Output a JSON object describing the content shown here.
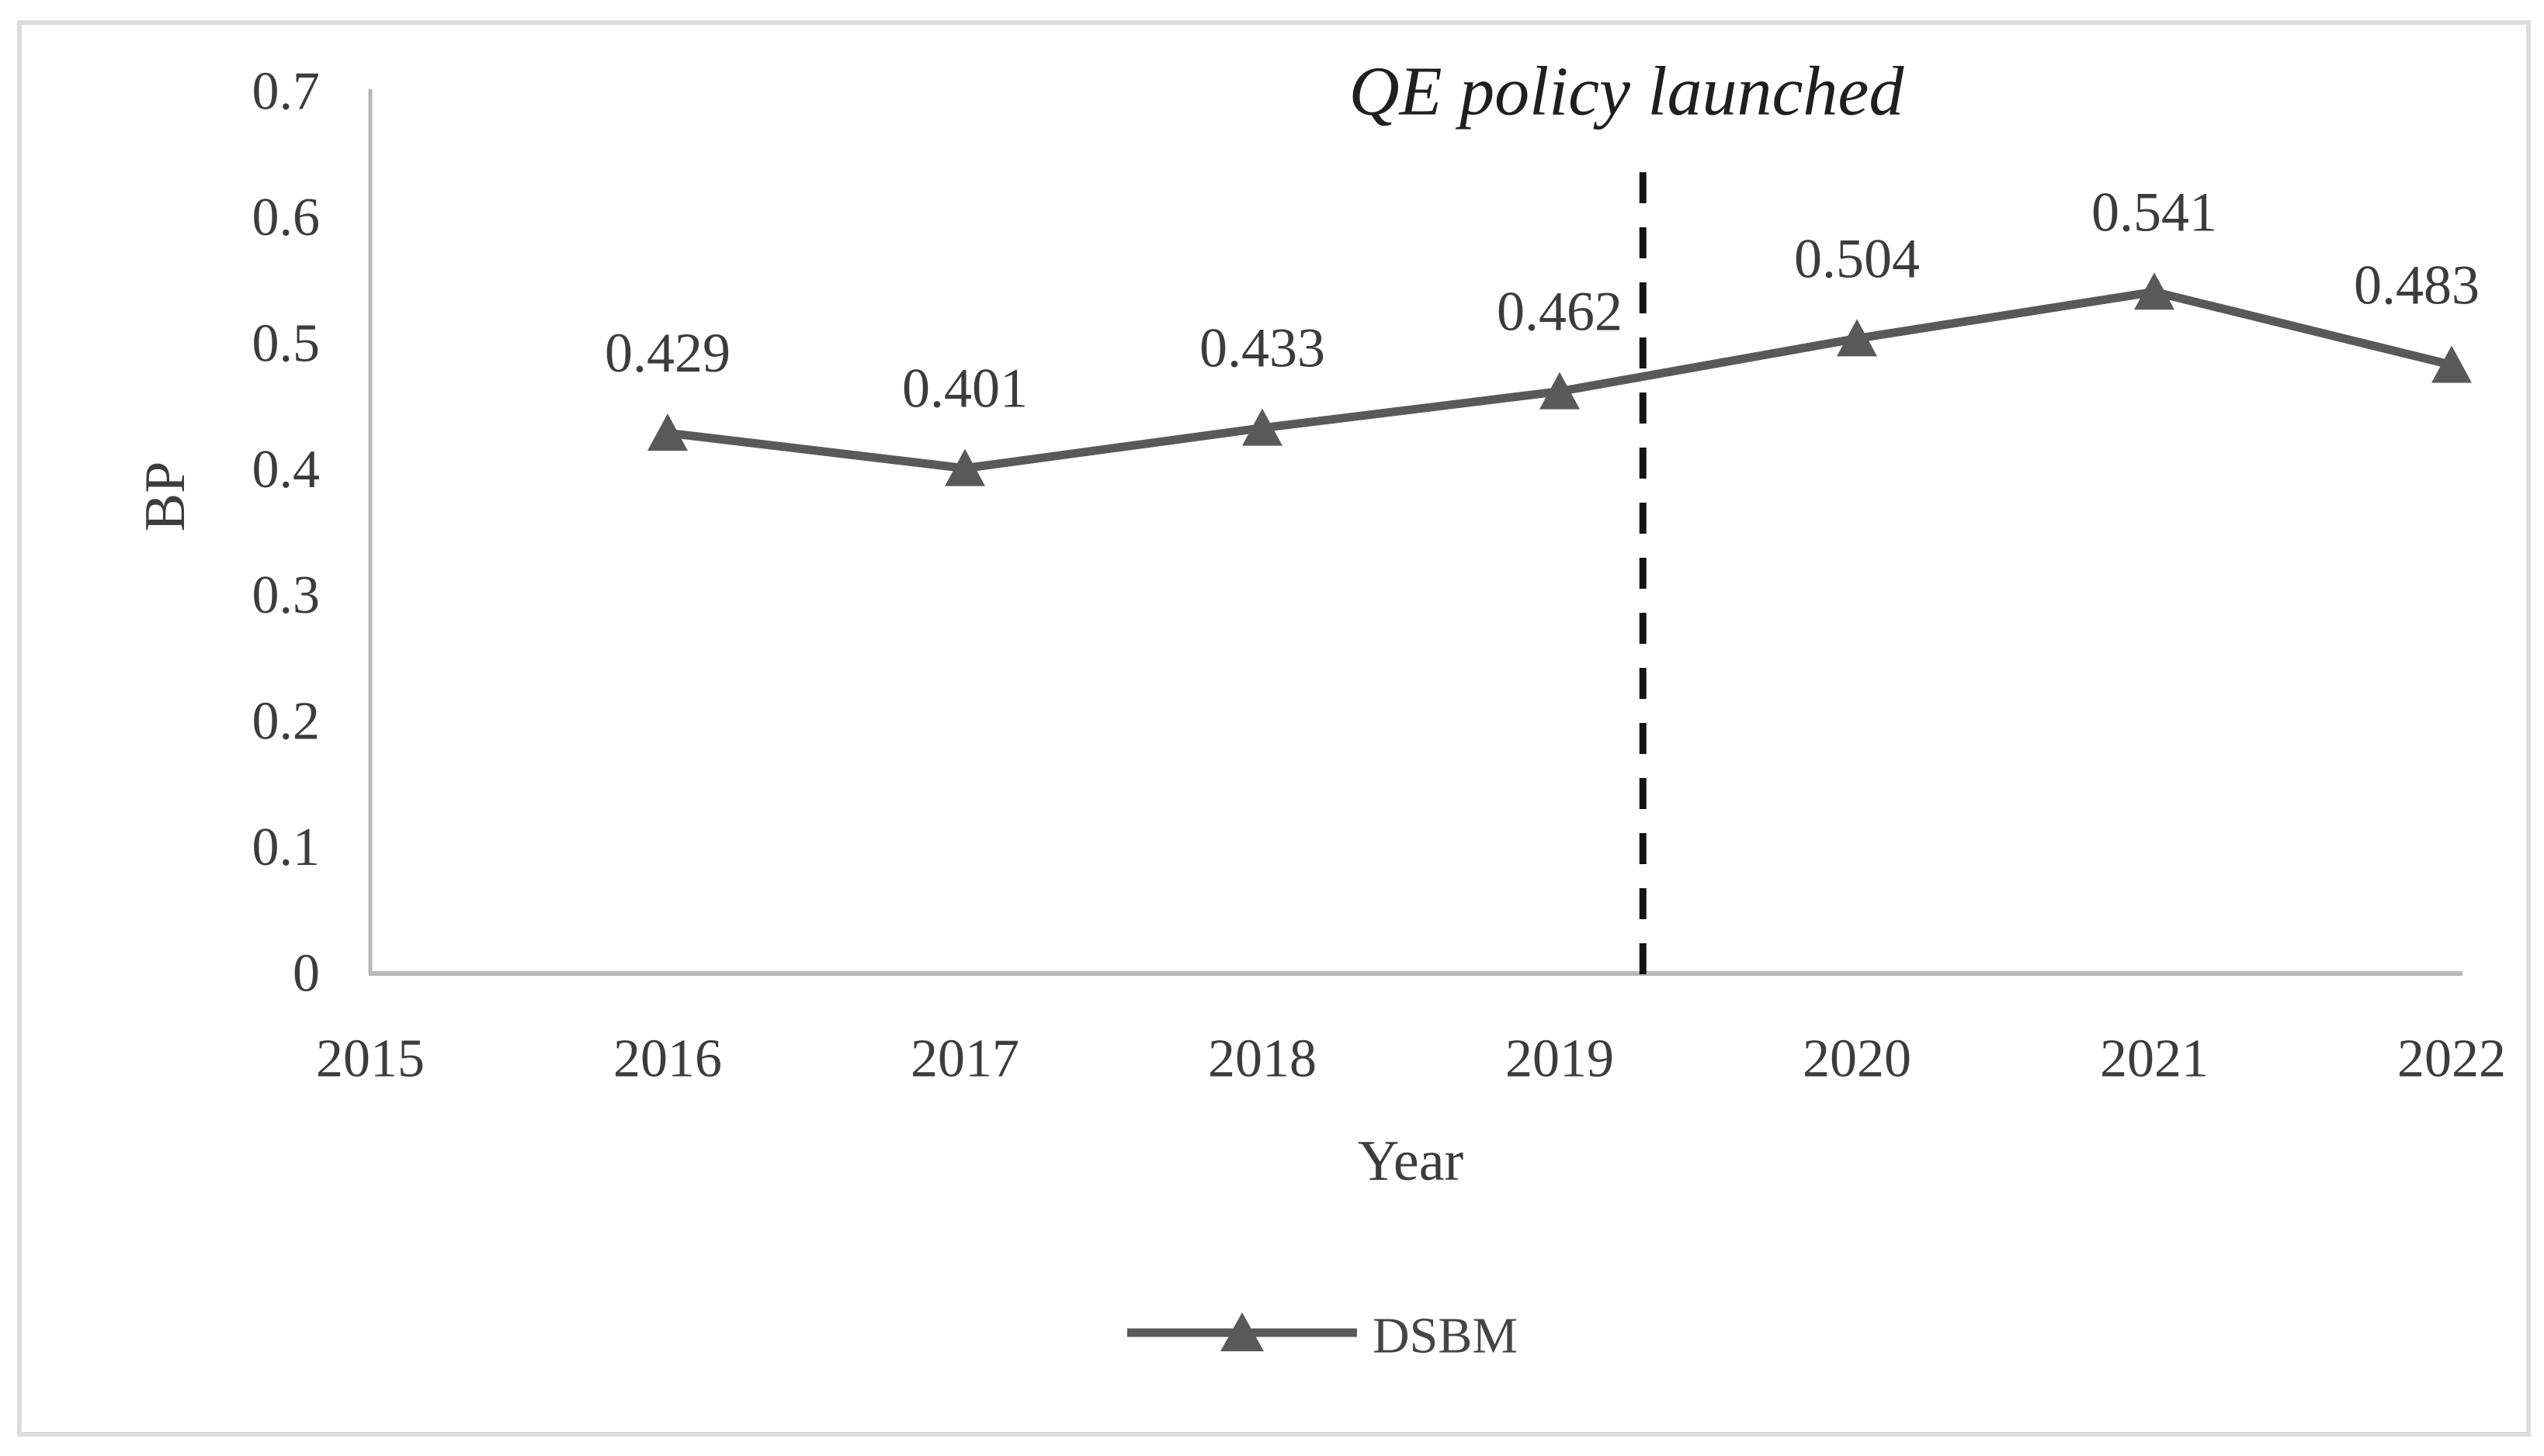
{
  "figure": {
    "background": "#ffffff",
    "border_color": "#dcdcdc"
  },
  "chart_data": {
    "type": "line",
    "title": "",
    "xlabel": "Year",
    "ylabel": "BP",
    "x": [
      2016,
      2017,
      2018,
      2019,
      2020,
      2021,
      2022
    ],
    "series": [
      {
        "name": "DSBM",
        "color": "#595959",
        "marker": "triangle",
        "values": [
          0.429,
          0.401,
          0.433,
          0.462,
          0.504,
          0.541,
          0.483
        ]
      }
    ],
    "data_labels": [
      "0.429",
      "0.401",
      "0.433",
      "0.462",
      "0.504",
      "0.541",
      "0.483"
    ],
    "x_ticks": [
      "2015",
      "2016",
      "2017",
      "2018",
      "2019",
      "2020",
      "2021",
      "2022"
    ],
    "x_tick_values": [
      2015,
      2016,
      2017,
      2018,
      2019,
      2020,
      2021,
      2022
    ],
    "y_ticks": [
      "0",
      "0.1",
      "0.2",
      "0.3",
      "0.4",
      "0.5",
      "0.6",
      "0.7"
    ],
    "y_tick_values": [
      0,
      0.1,
      0.2,
      0.3,
      0.4,
      0.5,
      0.6,
      0.7
    ],
    "xlim": [
      2015,
      2022
    ],
    "ylim": [
      0,
      0.7
    ],
    "grid": false,
    "legend_position": "bottom",
    "annotation": {
      "text": "QE policy launched",
      "x": 2019.28,
      "line_style": "dashed",
      "line_color": "#141414"
    },
    "colors": {
      "axis": "#b8b8b8",
      "text": "#3c3c3c"
    }
  }
}
